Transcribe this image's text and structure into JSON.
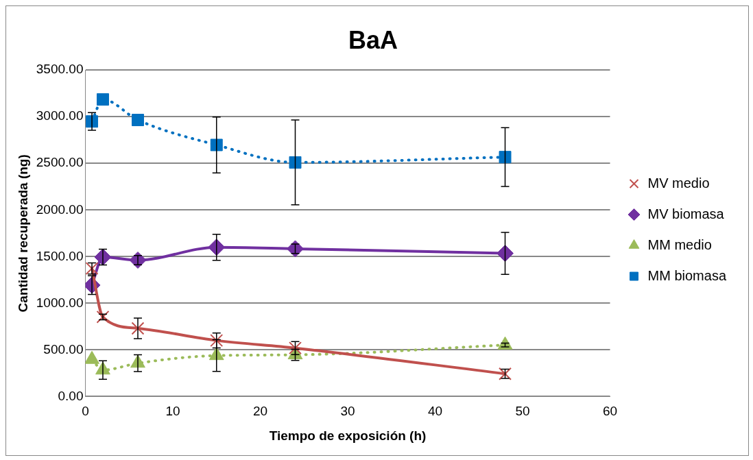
{
  "chart_data": {
    "type": "line",
    "title": "BaA",
    "xlabel": "Tiempo de exposición (h)",
    "ylabel": "Cantidad recuperada (ng)",
    "x": [
      0.75,
      2,
      6,
      15,
      24,
      48
    ],
    "series": [
      {
        "name": "MV medio",
        "color": "#c0504d",
        "marker": "cross",
        "line_style": "solid",
        "values": [
          1373,
          853,
          731,
          601,
          520,
          244
        ],
        "errors": [
          60,
          30,
          110,
          80,
          70,
          50
        ]
      },
      {
        "name": "MV biomasa",
        "color": "#7030a0",
        "marker": "diamond",
        "line_style": "solid",
        "values": [
          1194,
          1495,
          1462,
          1600,
          1584,
          1535
        ],
        "errors": [
          100,
          85,
          50,
          140,
          50,
          225
        ]
      },
      {
        "name": "MM medio",
        "color": "#9bbb59",
        "marker": "triangle",
        "line_style": "dotted",
        "values": [
          398,
          284,
          357,
          439,
          447,
          552
        ],
        "errors": [
          null,
          100,
          90,
          170,
          60,
          20
        ]
      },
      {
        "name": "MM biomasa",
        "color": "#0070c0",
        "marker": "square",
        "line_style": "dotted",
        "values": [
          2949,
          3185,
          2965,
          2697,
          2510,
          2567
        ],
        "errors": [
          95,
          null,
          null,
          300,
          455,
          315
        ]
      }
    ],
    "xlim": [
      0,
      60
    ],
    "xticks": [
      0,
      10,
      20,
      30,
      40,
      50,
      60
    ],
    "ylim": [
      0,
      3500
    ],
    "yticks": [
      {
        "value": 0,
        "label": "0.00"
      },
      {
        "value": 500,
        "label": "500.00"
      },
      {
        "value": 1000,
        "label": "1000.00"
      },
      {
        "value": 1500,
        "label": "1500.00"
      },
      {
        "value": 2000,
        "label": "2000.00"
      },
      {
        "value": 2500,
        "label": "2500.00"
      },
      {
        "value": 3000,
        "label": "3000.00"
      },
      {
        "value": 3500,
        "label": "3500.00"
      }
    ],
    "grid": "y",
    "legend": "right"
  }
}
